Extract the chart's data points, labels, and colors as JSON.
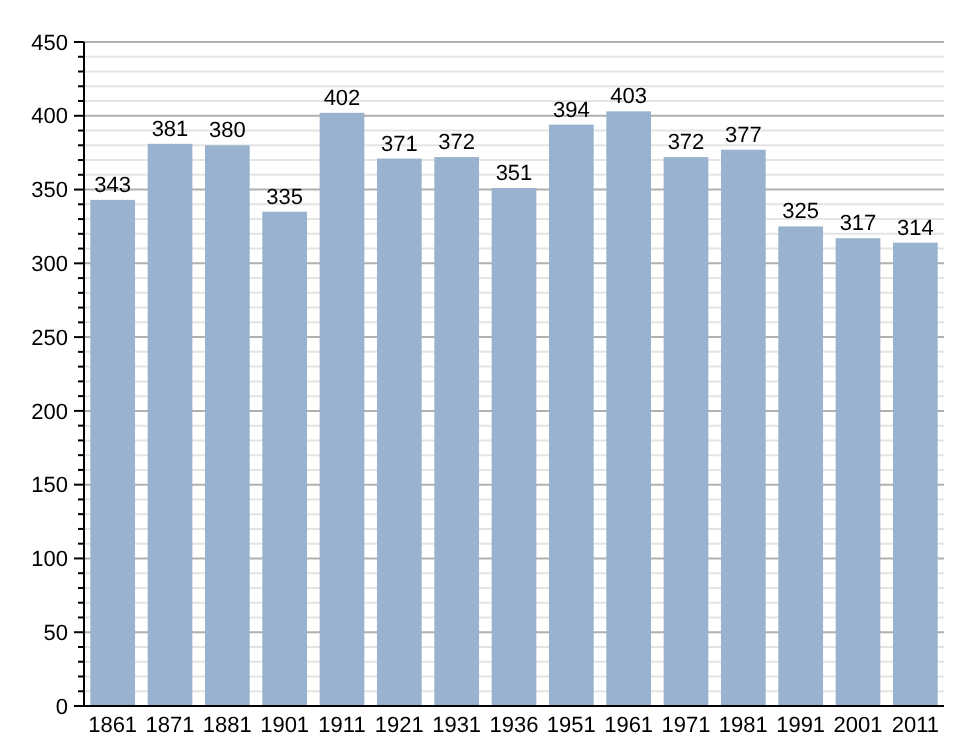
{
  "chart_data": {
    "type": "bar",
    "categories": [
      "1861",
      "1871",
      "1881",
      "1901",
      "1911",
      "1921",
      "1931",
      "1936",
      "1951",
      "1961",
      "1971",
      "1981",
      "1991",
      "2001",
      "2011"
    ],
    "values": [
      343,
      381,
      380,
      335,
      402,
      371,
      372,
      351,
      394,
      403,
      372,
      377,
      325,
      317,
      314
    ],
    "color": "#98b2cf",
    "data_labels": true,
    "grid": "y",
    "ylim": [
      0,
      450
    ],
    "yticks": [
      0,
      {
        "value": 10,
        "label": null
      },
      {
        "value": 20,
        "label": null
      },
      {
        "value": 30,
        "label": null
      },
      {
        "value": 40,
        "label": null
      },
      50,
      {
        "value": 60,
        "label": null
      },
      {
        "value": 70,
        "label": null
      },
      {
        "value": 80,
        "label": null
      },
      {
        "value": 90,
        "label": null
      },
      100,
      {
        "value": 110,
        "label": null
      },
      {
        "value": 120,
        "label": null
      },
      {
        "value": 130,
        "label": null
      },
      {
        "value": 140,
        "label": null
      },
      150,
      {
        "value": 160,
        "label": null
      },
      {
        "value": 170,
        "label": null
      },
      {
        "value": 180,
        "label": null
      },
      {
        "value": 190,
        "label": null
      },
      200,
      {
        "value": 210,
        "label": null
      },
      {
        "value": 220,
        "label": null
      },
      {
        "value": 230,
        "label": null
      },
      {
        "value": 240,
        "label": null
      },
      250,
      {
        "value": 260,
        "label": null
      },
      {
        "value": 270,
        "label": null
      },
      {
        "value": 280,
        "label": null
      },
      {
        "value": 290,
        "label": null
      },
      300,
      {
        "value": 310,
        "label": null
      },
      {
        "value": 320,
        "label": null
      },
      {
        "value": 330,
        "label": null
      },
      {
        "value": 340,
        "label": null
      },
      350,
      {
        "value": 360,
        "label": null
      },
      {
        "value": 370,
        "label": null
      },
      {
        "value": 380,
        "label": null
      },
      {
        "value": 390,
        "label": null
      },
      400,
      {
        "value": 410,
        "label": null
      },
      {
        "value": 420,
        "label": null
      },
      {
        "value": 430,
        "label": null
      },
      {
        "value": 440,
        "label": null
      },
      450
    ]
  }
}
